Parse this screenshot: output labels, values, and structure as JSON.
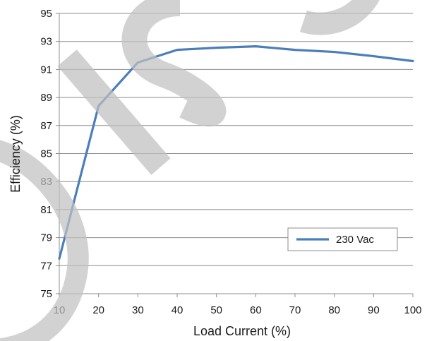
{
  "chart_data": {
    "type": "line",
    "title": "",
    "xlabel": "Load Current  (%)",
    "ylabel": "Efficiency (%)",
    "xlim": [
      10,
      100
    ],
    "ylim": [
      75,
      95
    ],
    "x_ticks": [
      "10",
      "20",
      "30",
      "40",
      "50",
      "60",
      "70",
      "80",
      "90",
      "100"
    ],
    "y_ticks": [
      "75",
      "77",
      "79",
      "81",
      "83",
      "85",
      "87",
      "89",
      "91",
      "93",
      "95"
    ],
    "grid": "horizontal",
    "legend_position": "bottom-right",
    "series": [
      {
        "name": "230 Vac",
        "color": "#4a7ebb",
        "x": [
          10,
          20,
          30,
          40,
          50,
          60,
          70,
          80,
          90,
          100
        ],
        "y": [
          77.5,
          88.4,
          91.5,
          92.4,
          92.55,
          92.65,
          92.4,
          92.25,
          91.95,
          91.6
        ]
      }
    ],
    "watermark_color": "#c0c0c0"
  }
}
